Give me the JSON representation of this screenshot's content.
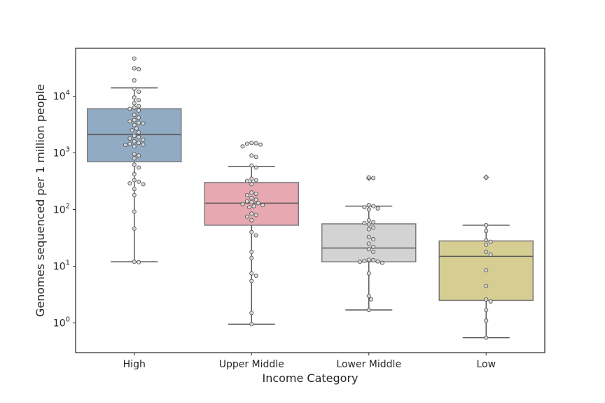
{
  "chart_data": {
    "type": "box",
    "xlabel": "Income Category",
    "ylabel": "Genomes sequenced per 1 million people",
    "y_scale": "log10",
    "ylim": [
      0.3,
      70000
    ],
    "y_ticks": [
      {
        "value": 1,
        "base": "10",
        "exp": "0"
      },
      {
        "value": 10,
        "base": "10",
        "exp": "1"
      },
      {
        "value": 100,
        "base": "10",
        "exp": "2"
      },
      {
        "value": 1000,
        "base": "10",
        "exp": "3"
      },
      {
        "value": 10000,
        "base": "10",
        "exp": "4"
      }
    ],
    "grid": false,
    "categories": [
      {
        "label": "High",
        "color": "#92abc4",
        "box": {
          "whisker_low": 12,
          "q1": 700,
          "median": 2100,
          "q3": 6000,
          "whisker_high": 14000
        },
        "outliers": [],
        "points": [
          46000,
          31000,
          30000,
          19000,
          13500,
          12000,
          9500,
          8500,
          7500,
          6700,
          6300,
          6000,
          5600,
          4700,
          4200,
          3800,
          3600,
          3400,
          3300,
          3100,
          2700,
          2500,
          2300,
          2000,
          1900,
          1800,
          1700,
          1600,
          1500,
          1450,
          1400,
          1380,
          1300,
          950,
          900,
          800,
          620,
          550,
          420,
          330,
          310,
          290,
          280,
          230,
          180,
          92,
          46,
          12,
          11.8
        ]
      },
      {
        "label": "Upper Middle",
        "color": "#e8a8b1",
        "box": {
          "whisker_low": 0.95,
          "q1": 53,
          "median": 130,
          "q3": 300,
          "whisker_high": 580
        },
        "outliers": [],
        "points": [
          1500,
          1480,
          1450,
          1400,
          1300,
          900,
          850,
          600,
          550,
          350,
          330,
          320,
          280,
          200,
          190,
          180,
          160,
          150,
          140,
          135,
          130,
          125,
          120,
          115,
          110,
          85,
          80,
          75,
          65,
          40,
          35,
          18,
          14,
          7.5,
          6.8,
          5.5,
          1.5,
          0.95
        ]
      },
      {
        "label": "Lower Middle",
        "color": "#d3d3d3",
        "box": {
          "whisker_low": 1.7,
          "q1": 12,
          "median": 21,
          "q3": 56,
          "whisker_high": 115
        },
        "outliers": [
          360
        ],
        "points": [
          370,
          360,
          120,
          115,
          110,
          105,
          100,
          65,
          60,
          58,
          55,
          48,
          45,
          33,
          30,
          25,
          22,
          20,
          18,
          13,
          12.8,
          12.5,
          12.2,
          12,
          11.5,
          7.5,
          3,
          2.6,
          1.7
        ]
      },
      {
        "label": "Low",
        "color": "#d5cd92",
        "box": {
          "whisker_low": 0.55,
          "q1": 2.5,
          "median": 15,
          "q3": 28,
          "whisker_high": 53
        },
        "outliers": [
          370
        ],
        "points": [
          370,
          53,
          42,
          29,
          27,
          24,
          18,
          16,
          8.5,
          4.5,
          2.6,
          2.4,
          1.7,
          1.1,
          0.55
        ]
      }
    ]
  }
}
